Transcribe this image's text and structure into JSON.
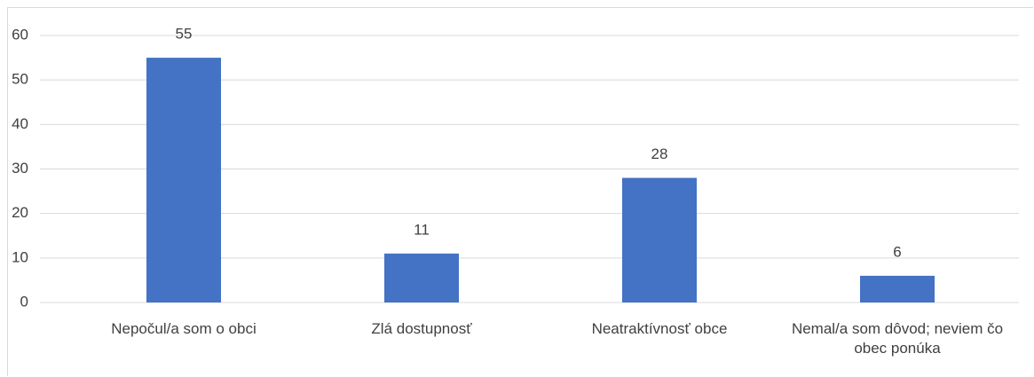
{
  "chart_data": {
    "type": "bar",
    "categories": [
      "Nepočul/a som o obci",
      "Zlá dostupnosť",
      "Neatraktívnosť obce",
      "Nemal/a som dôvod; neviem čo obec ponúka"
    ],
    "values": [
      55,
      11,
      28,
      6
    ],
    "color": "#4472c4",
    "ylim": [
      0,
      60
    ],
    "yticks": [
      0,
      10,
      20,
      30,
      40,
      50,
      60
    ],
    "grid": true
  }
}
